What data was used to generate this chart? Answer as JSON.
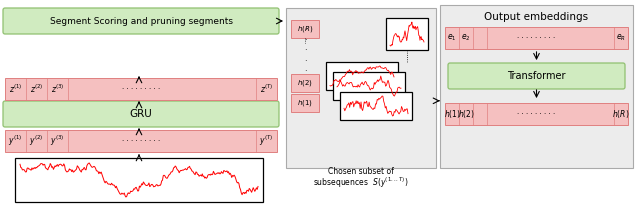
{
  "fig_width": 6.4,
  "fig_height": 2.12,
  "dpi": 100,
  "bg_color": "#ffffff",
  "pink_face": "#f5c0c0",
  "pink_edge": "#e08080",
  "green_face": "#d0ebc0",
  "green_edge": "#90c070",
  "gray_bg": "#ececec",
  "gray_edge": "#aaaaaa",
  "segment_scoring_label": "Segment Scoring and pruning segments",
  "gru_label": "GRU",
  "transformer_label": "Transformer",
  "output_embeddings_label": "Output embeddings",
  "chosen_subset_line1": "Chosen subset of",
  "chosen_subset_line2": "subsequences  $S(y^{(1...T)})$"
}
